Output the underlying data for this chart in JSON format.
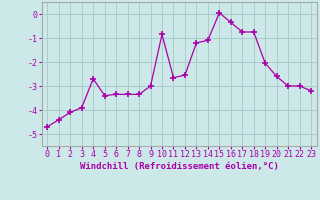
{
  "x": [
    0,
    1,
    2,
    3,
    4,
    5,
    6,
    7,
    8,
    9,
    10,
    11,
    12,
    13,
    14,
    15,
    16,
    17,
    18,
    19,
    20,
    21,
    22,
    23
  ],
  "y": [
    -4.7,
    -4.4,
    -4.1,
    -3.9,
    -2.7,
    -3.4,
    -3.35,
    -3.35,
    -3.35,
    -3.0,
    -0.85,
    -2.65,
    -2.55,
    -1.2,
    -1.1,
    0.05,
    -0.35,
    -0.75,
    -0.75,
    -2.05,
    -2.6,
    -3.0,
    -3.0,
    -3.2
  ],
  "line_color": "#aa00aa",
  "marker": "+",
  "marker_size": 4,
  "marker_linewidth": 1.2,
  "xlabel": "Windchill (Refroidissement éolien,°C)",
  "xlim": [
    -0.5,
    23.5
  ],
  "ylim": [
    -5.5,
    0.5
  ],
  "yticks": [
    0,
    -1,
    -2,
    -3,
    -4,
    -5
  ],
  "xticks": [
    0,
    1,
    2,
    3,
    4,
    5,
    6,
    7,
    8,
    9,
    10,
    11,
    12,
    13,
    14,
    15,
    16,
    17,
    18,
    19,
    20,
    21,
    22,
    23
  ],
  "background_color": "#cce8e8",
  "grid_color": "#aacccc",
  "xlabel_fontsize": 6.5,
  "tick_fontsize": 6.0,
  "linewidth": 0.9
}
